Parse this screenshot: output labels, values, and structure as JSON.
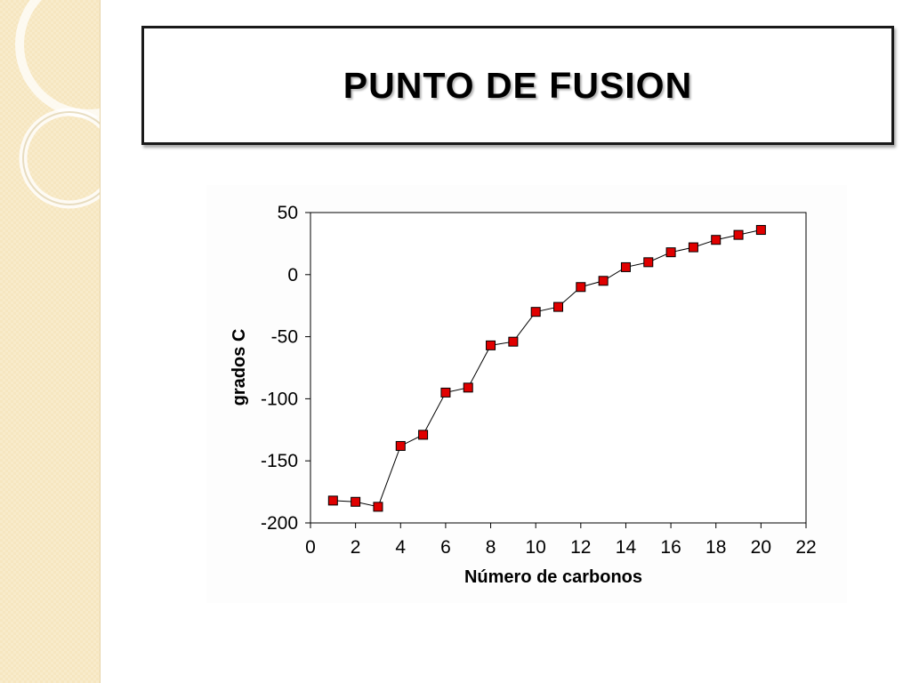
{
  "slide": {
    "title": "PUNTO DE FUSION",
    "colors": {
      "side_strip": "#f6e6c0",
      "marker_fill": "#e00000",
      "marker_stroke": "#000000",
      "line": "#000000"
    }
  },
  "chart_data": {
    "type": "line",
    "title": "",
    "xlabel": "Número de carbonos",
    "ylabel": "grados C",
    "xlim": [
      0,
      22
    ],
    "ylim": [
      -200,
      50
    ],
    "x_ticks": [
      0,
      2,
      4,
      6,
      8,
      10,
      12,
      14,
      16,
      18,
      20,
      22
    ],
    "y_ticks": [
      50,
      0,
      -50,
      -100,
      -150,
      -200
    ],
    "grid": false,
    "legend": "none",
    "marker": "square",
    "series": [
      {
        "x": [
          1,
          2,
          3,
          4,
          5,
          6,
          7,
          8,
          9,
          10,
          11,
          12,
          13,
          14,
          15,
          16,
          17,
          18,
          19,
          20
        ],
        "y": [
          -182,
          -183,
          -187,
          -138,
          -129,
          -95,
          -91,
          -57,
          -54,
          -30,
          -26,
          -10,
          -5,
          6,
          10,
          18,
          22,
          28,
          32,
          36
        ]
      }
    ]
  }
}
